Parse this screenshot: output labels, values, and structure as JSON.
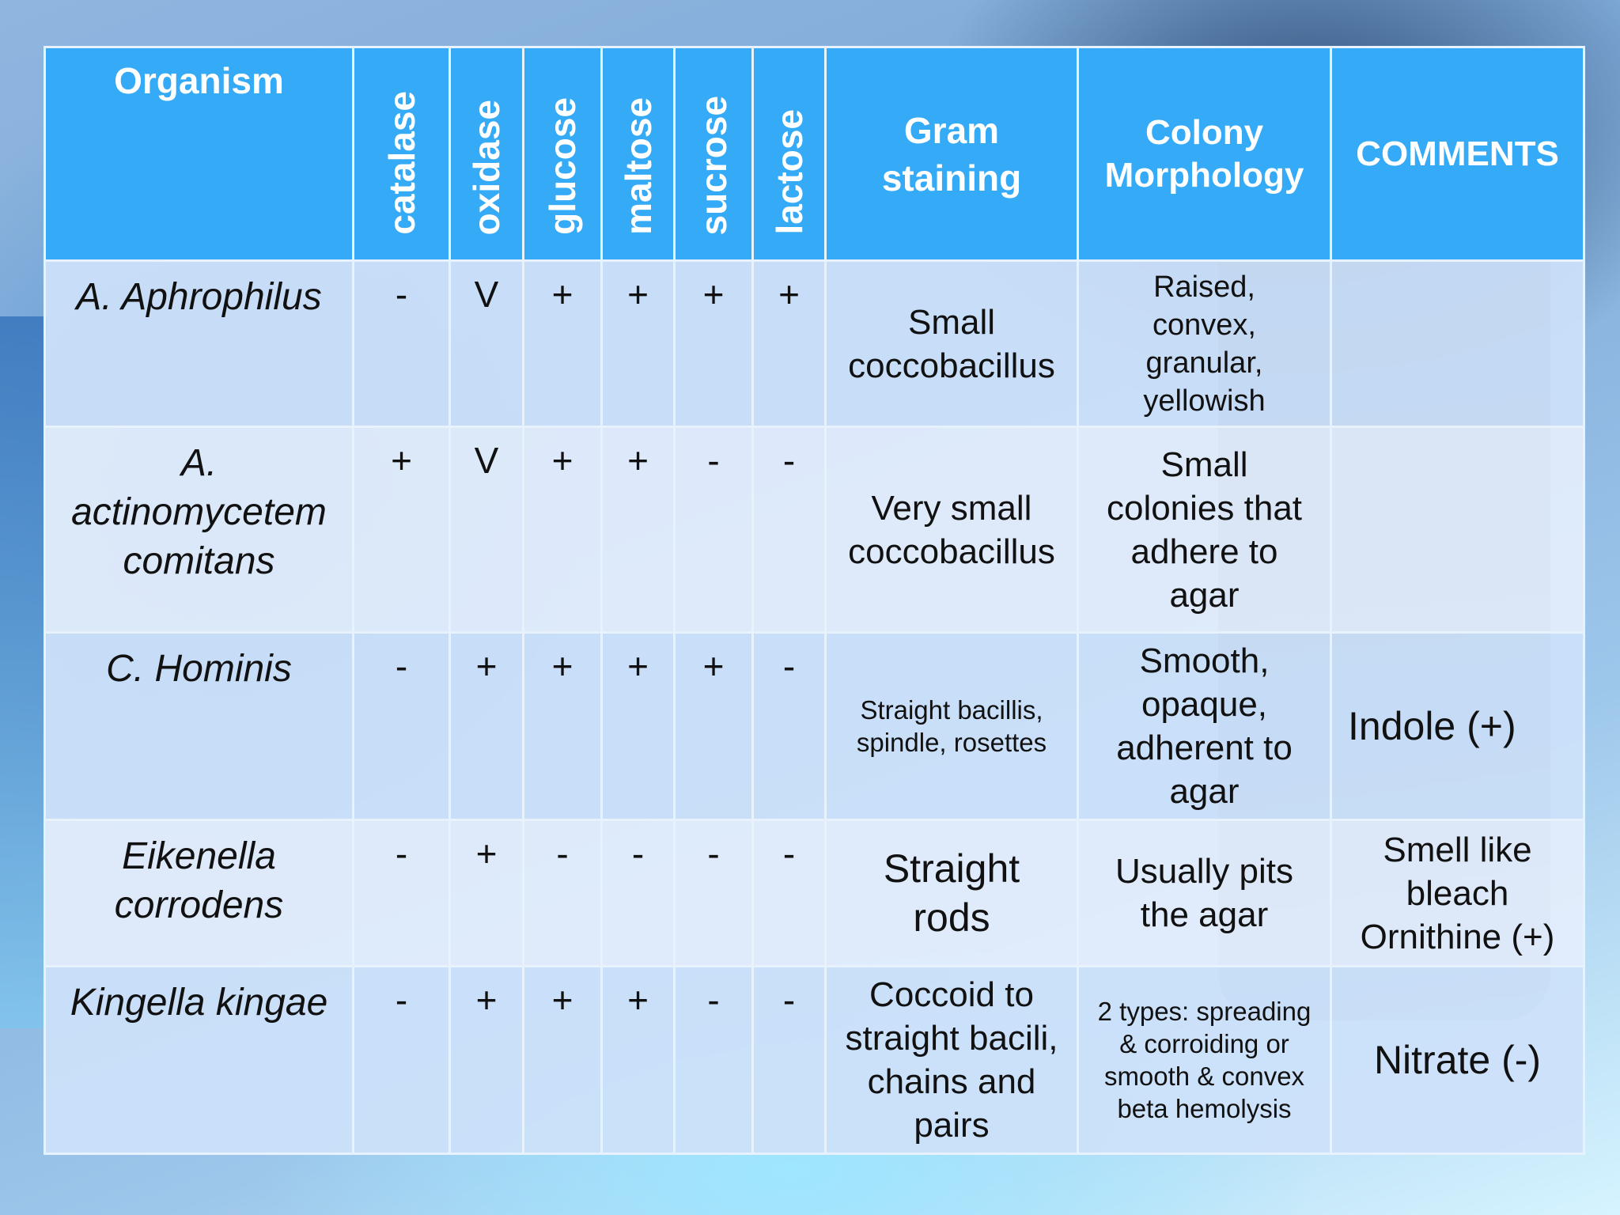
{
  "headers": {
    "organism": "Organism",
    "catalase": "catalase",
    "oxidase": "oxidase",
    "glucose": "glucose",
    "maltose": "maltose",
    "sucrose": "sucrose",
    "lactose": "lactose",
    "gram_line1": "Gram",
    "gram_line2": "staining",
    "colony_line1": "Colony",
    "colony_line2": "Morphology",
    "comments": "COMMENTS"
  },
  "rows": [
    {
      "organism": [
        "A.  Aphrophilus"
      ],
      "catalase": "-",
      "oxidase": "V",
      "glucose": "+",
      "maltose": "+",
      "sucrose": "+",
      "lactose": "+",
      "gram": [
        "Small",
        "coccobacillus"
      ],
      "colony": [
        "Raised,",
        "convex,",
        "granular,",
        "yellowish"
      ],
      "comments": []
    },
    {
      "organism": [
        "A.",
        "actinomycetem",
        "comitans"
      ],
      "catalase": "+",
      "oxidase": "V",
      "glucose": "+",
      "maltose": "+",
      "sucrose": "-",
      "lactose": "-",
      "gram": [
        "Very small",
        "coccobacillus"
      ],
      "colony": [
        "Small",
        "colonies that",
        "adhere to",
        "agar"
      ],
      "comments": []
    },
    {
      "organism": [
        "C. Hominis"
      ],
      "catalase": "-",
      "oxidase": "+",
      "glucose": "+",
      "maltose": "+",
      "sucrose": "+",
      "lactose": "-",
      "gram": [
        "Straight bacillis,",
        "spindle, rosettes"
      ],
      "colony": [
        "Smooth,",
        "opaque,",
        "adherent to",
        "agar"
      ],
      "comments": [
        "Indole (+)"
      ]
    },
    {
      "organism": [
        "Eikenella",
        "corrodens"
      ],
      "catalase": "-",
      "oxidase": "+",
      "glucose": "-",
      "maltose": "-",
      "sucrose": "-",
      "lactose": "-",
      "gram": [
        "Straight",
        "rods"
      ],
      "colony": [
        "Usually pits",
        "the agar"
      ],
      "comments": [
        "Smell like",
        "bleach",
        "Ornithine (+)"
      ]
    },
    {
      "organism": [
        "Kingella kingae"
      ],
      "catalase": "-",
      "oxidase": "+",
      "glucose": "+",
      "maltose": "+",
      "sucrose": "-",
      "lactose": "-",
      "gram": [
        "Coccoid to",
        "straight bacili,",
        "chains and",
        "pairs"
      ],
      "colony": [
        "2 types: spreading",
        "& corroiding or",
        "smooth & convex",
        "beta hemolysis"
      ],
      "comments": [
        "Nitrate (-)"
      ]
    }
  ]
}
